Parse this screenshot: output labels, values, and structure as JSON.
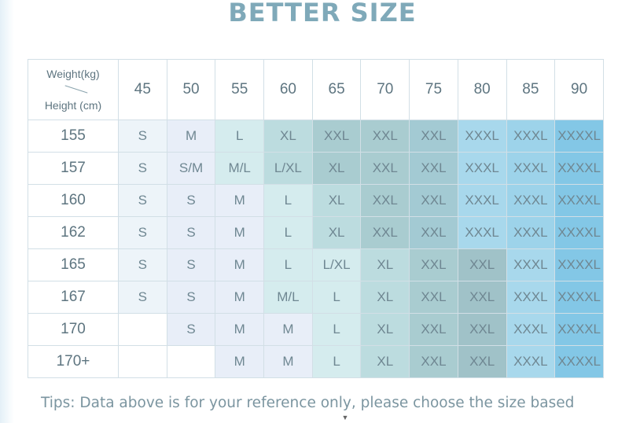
{
  "title": "BETTER SIZE",
  "table": {
    "corner_weight": "Weight(kg)",
    "corner_height": "Height (cm)",
    "weights": [
      "45",
      "50",
      "55",
      "60",
      "65",
      "70",
      "75",
      "80",
      "85",
      "90"
    ],
    "rows": [
      {
        "height": "155",
        "sizes": [
          "S",
          "M",
          "L",
          "XL",
          "XXL",
          "XXL",
          "XXL",
          "XXXL",
          "XXXL",
          "XXXXL"
        ]
      },
      {
        "height": "157",
        "sizes": [
          "S",
          "S/M",
          "M/L",
          "L/XL",
          "XL",
          "XXL",
          "XXL",
          "XXXL",
          "XXXL",
          "XXXXL"
        ]
      },
      {
        "height": "160",
        "sizes": [
          "S",
          "S",
          "M",
          "L",
          "XL",
          "XXL",
          "XXL",
          "XXXL",
          "XXXL",
          "XXXXL"
        ]
      },
      {
        "height": "162",
        "sizes": [
          "S",
          "S",
          "M",
          "L",
          "XL",
          "XXL",
          "XXL",
          "XXXL",
          "XXXL",
          "XXXXL"
        ]
      },
      {
        "height": "165",
        "sizes": [
          "S",
          "S",
          "M",
          "L",
          "L/XL",
          "XL",
          "XXL",
          "XXL",
          "XXXL",
          "XXXXL"
        ]
      },
      {
        "height": "167",
        "sizes": [
          "S",
          "S",
          "M",
          "M/L",
          "L",
          "XL",
          "XXL",
          "XXL",
          "XXXL",
          "XXXXL"
        ]
      },
      {
        "height": "170",
        "sizes": [
          "",
          "S",
          "M",
          "M",
          "L",
          "XL",
          "XXL",
          "XXL",
          "XXXL",
          "XXXXL"
        ]
      },
      {
        "height": "170+",
        "sizes": [
          "",
          "",
          "M",
          "M",
          "L",
          "XL",
          "XXL",
          "XXL",
          "XXXL",
          "XXXXL"
        ]
      }
    ]
  },
  "tips": "Tips: Data above is for your reference only, please choose the size based"
}
